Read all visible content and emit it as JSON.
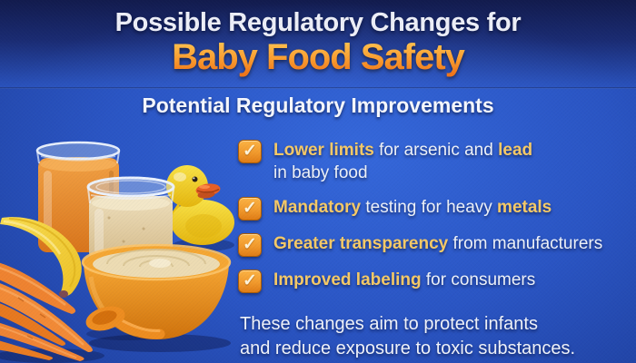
{
  "title": {
    "line1": "Possible Regulatory Changes for",
    "line2": "Baby Food Safety"
  },
  "subtitle": "Potential Regulatory Improvements",
  "checklist": {
    "items": [
      {
        "segments": [
          {
            "t": "Lower limits",
            "em": true
          },
          {
            "t": " for arsenic and ",
            "em": false
          },
          {
            "t": "lead",
            "em": true
          },
          {
            "t": "in baby food",
            "em": false,
            "br": true
          }
        ]
      },
      {
        "segments": [
          {
            "t": "Mandatory",
            "em": true
          },
          {
            "t": " testing for heavy ",
            "em": false
          },
          {
            "t": "metals",
            "em": true
          }
        ]
      },
      {
        "segments": [
          {
            "t": "Greater transparency",
            "em": true
          },
          {
            "t": " from manufacturers",
            "em": false
          }
        ]
      },
      {
        "segments": [
          {
            "t": "Improved labeling",
            "em": true
          },
          {
            "t": " for consumers",
            "em": false
          }
        ]
      }
    ]
  },
  "footer": {
    "line1": "These changes aim to protect infants",
    "line2": "and reduce exposure to toxic substances."
  },
  "icons": {
    "checkmark": "✓",
    "scene_items": [
      "carrot-puree-jar",
      "cream-puree-jar",
      "rubber-duck",
      "banana",
      "carrot-bunch",
      "puree-bowl",
      "feeding-spoon"
    ]
  },
  "colors": {
    "background_blue": "#2a55c4",
    "header_navy": "#1a2b72",
    "title_orange_top": "#ffc24e",
    "title_orange_bottom": "#f0761a",
    "gold_text": "#f6ca67",
    "white_text": "#eef2f9",
    "checkbox_orange": "#f29a2c"
  }
}
